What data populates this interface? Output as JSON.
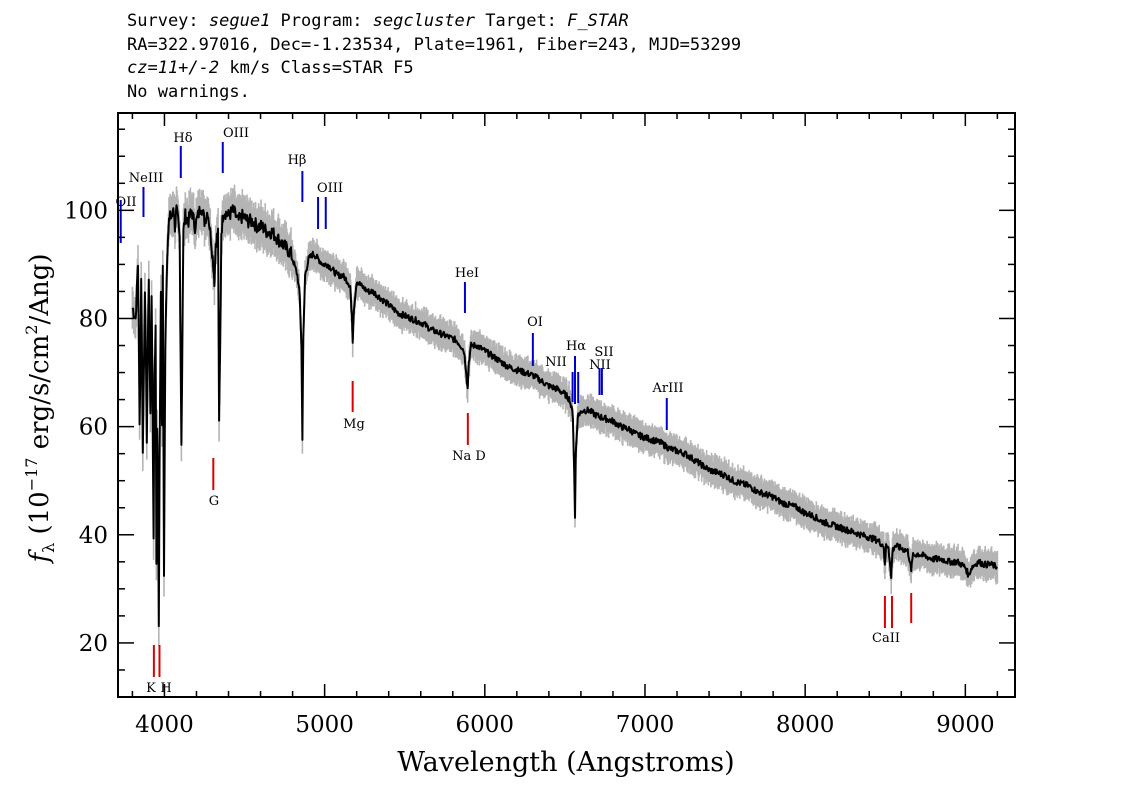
{
  "header": {
    "survey_label": "Survey: ",
    "survey": "segue1",
    "program_label": " Program: ",
    "program": "segcluster",
    "target_label": " Target: ",
    "target": "F_STAR",
    "line2": "RA=322.97016, Dec=-1.23534, Plate=1961, Fiber=243, MJD=53299",
    "cz": "cz=11+/-2",
    "line3_rest": " km/s Class=STAR F5",
    "line4": "No warnings."
  },
  "colors": {
    "emission": "#0000cc",
    "absorption": "#dd0000",
    "spectrum": "#000000",
    "error": "#b4b4b4"
  },
  "chart_data": {
    "type": "line",
    "xlabel": "Wavelength (Angstroms)",
    "ylabel": "f_λ (10^-17 erg/s/cm^2/Ang)",
    "xlim": [
      3710,
      9310
    ],
    "ylim": [
      10,
      118
    ],
    "xticks": [
      4000,
      5000,
      6000,
      7000,
      8000,
      9000
    ],
    "yticks": [
      20,
      40,
      60,
      80,
      100
    ],
    "x_tick_labels": [
      "4000",
      "5000",
      "6000",
      "7000",
      "8000",
      "9000"
    ],
    "y_tick_labels": [
      "20",
      "40",
      "60",
      "80",
      "100"
    ],
    "series": [
      {
        "points": [
          [
            3800,
            82
          ],
          [
            3820,
            80
          ],
          [
            3835,
            90
          ],
          [
            3845,
            60
          ],
          [
            3855,
            88
          ],
          [
            3865,
            55
          ],
          [
            3878,
            86
          ],
          [
            3890,
            58
          ],
          [
            3902,
            88
          ],
          [
            3912,
            62
          ],
          [
            3920,
            85
          ],
          [
            3932,
            40
          ],
          [
            3938,
            70
          ],
          [
            3945,
            78
          ],
          [
            3950,
            35
          ],
          [
            3955,
            60
          ],
          [
            3960,
            50
          ],
          [
            3965,
            22
          ],
          [
            3970,
            55
          ],
          [
            3978,
            85
          ],
          [
            3985,
            60
          ],
          [
            3990,
            90
          ],
          [
            3997,
            32
          ],
          [
            4005,
            75
          ],
          [
            4015,
            90
          ],
          [
            4025,
            96
          ],
          [
            4035,
            100
          ],
          [
            4045,
            98
          ],
          [
            4055,
            101
          ],
          [
            4065,
            97
          ],
          [
            4075,
            100
          ],
          [
            4085,
            98
          ],
          [
            4095,
            95
          ],
          [
            4102,
            70
          ],
          [
            4106,
            57
          ],
          [
            4110,
            70
          ],
          [
            4118,
            96
          ],
          [
            4130,
            99
          ],
          [
            4150,
            98
          ],
          [
            4170,
            100
          ],
          [
            4190,
            97
          ],
          [
            4210,
            99
          ],
          [
            4230,
            101
          ],
          [
            4250,
            98
          ],
          [
            4270,
            100
          ],
          [
            4290,
            95
          ],
          [
            4305,
            90
          ],
          [
            4312,
            87
          ],
          [
            4320,
            94
          ],
          [
            4335,
            96
          ],
          [
            4341,
            60
          ],
          [
            4348,
            75
          ],
          [
            4355,
            96
          ],
          [
            4370,
            100
          ],
          [
            4400,
            99
          ],
          [
            4430,
            100
          ],
          [
            4460,
            98
          ],
          [
            4490,
            99
          ],
          [
            4520,
            98
          ],
          [
            4550,
            98
          ],
          [
            4580,
            97
          ],
          [
            4610,
            97
          ],
          [
            4640,
            96
          ],
          [
            4670,
            96
          ],
          [
            4700,
            95
          ],
          [
            4730,
            94
          ],
          [
            4760,
            93
          ],
          [
            4790,
            92
          ],
          [
            4810,
            90
          ],
          [
            4830,
            88
          ],
          [
            4845,
            84
          ],
          [
            4855,
            75
          ],
          [
            4861,
            58
          ],
          [
            4867,
            76
          ],
          [
            4878,
            88
          ],
          [
            4900,
            91
          ],
          [
            4930,
            92
          ],
          [
            4960,
            91
          ],
          [
            4990,
            90
          ],
          [
            5020,
            90
          ],
          [
            5050,
            89
          ],
          [
            5080,
            88
          ],
          [
            5110,
            88
          ],
          [
            5140,
            87
          ],
          [
            5160,
            86
          ],
          [
            5170,
            80
          ],
          [
            5175,
            76
          ],
          [
            5183,
            82
          ],
          [
            5200,
            87
          ],
          [
            5230,
            86
          ],
          [
            5270,
            85
          ],
          [
            5300,
            85
          ],
          [
            5340,
            84
          ],
          [
            5380,
            83
          ],
          [
            5420,
            82
          ],
          [
            5460,
            81
          ],
          [
            5500,
            80.5
          ],
          [
            5540,
            80
          ],
          [
            5580,
            79.5
          ],
          [
            5620,
            79
          ],
          [
            5660,
            78
          ],
          [
            5700,
            77.5
          ],
          [
            5740,
            77
          ],
          [
            5780,
            76.5
          ],
          [
            5820,
            76
          ],
          [
            5850,
            75
          ],
          [
            5870,
            74
          ],
          [
            5885,
            70
          ],
          [
            5893,
            67
          ],
          [
            5900,
            72
          ],
          [
            5915,
            75
          ],
          [
            5950,
            75
          ],
          [
            6000,
            74
          ],
          [
            6050,
            73
          ],
          [
            6100,
            72
          ],
          [
            6150,
            71
          ],
          [
            6200,
            70.5
          ],
          [
            6250,
            70
          ],
          [
            6300,
            69.5
          ],
          [
            6350,
            68.5
          ],
          [
            6400,
            67.5
          ],
          [
            6450,
            67
          ],
          [
            6500,
            66
          ],
          [
            6530,
            65
          ],
          [
            6550,
            62
          ],
          [
            6558,
            52
          ],
          [
            6563,
            43
          ],
          [
            6568,
            55
          ],
          [
            6580,
            62
          ],
          [
            6610,
            63
          ],
          [
            6650,
            63
          ],
          [
            6700,
            62
          ],
          [
            6750,
            61.5
          ],
          [
            6800,
            61
          ],
          [
            6850,
            60
          ],
          [
            6900,
            59.5
          ],
          [
            6950,
            58.5
          ],
          [
            7000,
            58
          ],
          [
            7050,
            57.5
          ],
          [
            7100,
            57
          ],
          [
            7150,
            56
          ],
          [
            7200,
            55.5
          ],
          [
            7250,
            55
          ],
          [
            7300,
            54
          ],
          [
            7350,
            53
          ],
          [
            7400,
            52
          ],
          [
            7450,
            51.5
          ],
          [
            7500,
            51
          ],
          [
            7550,
            50
          ],
          [
            7600,
            49.5
          ],
          [
            7650,
            49
          ],
          [
            7700,
            48
          ],
          [
            7750,
            47.5
          ],
          [
            7800,
            47
          ],
          [
            7850,
            46
          ],
          [
            7900,
            45.5
          ],
          [
            7950,
            45
          ],
          [
            8000,
            44
          ],
          [
            8050,
            43.5
          ],
          [
            8100,
            42.5
          ],
          [
            8150,
            42
          ],
          [
            8200,
            41.5
          ],
          [
            8250,
            41
          ],
          [
            8300,
            40.5
          ],
          [
            8350,
            40
          ],
          [
            8400,
            39.5
          ],
          [
            8450,
            39
          ],
          [
            8490,
            38
          ],
          [
            8498,
            34
          ],
          [
            8505,
            38
          ],
          [
            8520,
            38
          ],
          [
            8537,
            32
          ],
          [
            8545,
            37
          ],
          [
            8560,
            38
          ],
          [
            8600,
            37.5
          ],
          [
            8640,
            37
          ],
          [
            8655,
            35
          ],
          [
            8662,
            33
          ],
          [
            8670,
            36
          ],
          [
            8700,
            36.5
          ],
          [
            8750,
            36
          ],
          [
            8800,
            35.5
          ],
          [
            8850,
            35.5
          ],
          [
            8900,
            35
          ],
          [
            8950,
            35
          ],
          [
            9000,
            34
          ],
          [
            9020,
            32.5
          ],
          [
            9040,
            34
          ],
          [
            9080,
            35
          ],
          [
            9120,
            34.5
          ],
          [
            9160,
            34.5
          ],
          [
            9200,
            34
          ]
        ]
      }
    ],
    "emission_lines": [
      {
        "label": "OII",
        "x": 3727
      },
      {
        "label": "NeIII",
        "x": 3869
      },
      {
        "label": "Hδ",
        "x": 4102
      },
      {
        "label": "OIII",
        "x": 4364
      },
      {
        "label": "Hβ",
        "x": 4861
      },
      {
        "label": "OIII",
        "x": 4959
      },
      {
        "label": "OIII",
        "x": 5007
      },
      {
        "label": "HeI",
        "x": 5876
      },
      {
        "label": "OI",
        "x": 6300
      },
      {
        "label": "NII",
        "x": 6548
      },
      {
        "label": "Hα",
        "x": 6563
      },
      {
        "label": "NII",
        "x": 6583
      },
      {
        "label": "SII",
        "x": 6716
      },
      {
        "label": "SII",
        "x": 6731
      },
      {
        "label": "ArIII",
        "x": 7136
      }
    ],
    "absorption_lines": [
      {
        "label": "K",
        "x": 3934
      },
      {
        "label": "H",
        "x": 3969
      },
      {
        "label": "G",
        "x": 4305
      },
      {
        "label": "Mg",
        "x": 5175
      },
      {
        "label": "Na D",
        "x": 5894
      },
      {
        "label": "CaII",
        "x": 8498
      },
      {
        "label": "CaII",
        "x": 8542
      },
      {
        "label": "CaII",
        "x": 8662
      }
    ]
  }
}
